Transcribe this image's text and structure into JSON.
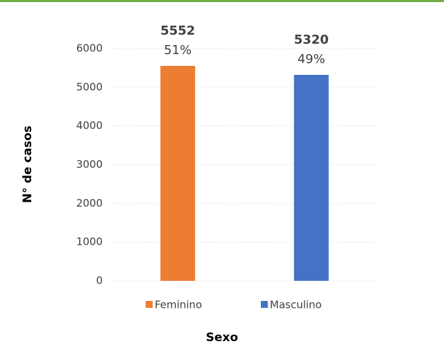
{
  "chart_data": {
    "type": "bar",
    "categories": [
      "Feminino",
      "Masculino"
    ],
    "values": [
      5552,
      5320
    ],
    "percent_labels": [
      "51%",
      "49%"
    ],
    "colors": [
      "#ed7d31",
      "#4472c4"
    ],
    "ylim": [
      0,
      6000
    ],
    "yticks": [
      0,
      1000,
      2000,
      3000,
      4000,
      5000,
      6000
    ],
    "grid": true,
    "legend": "bottom",
    "xlabel": "Sexo",
    "ylabel": "N° de casos"
  }
}
